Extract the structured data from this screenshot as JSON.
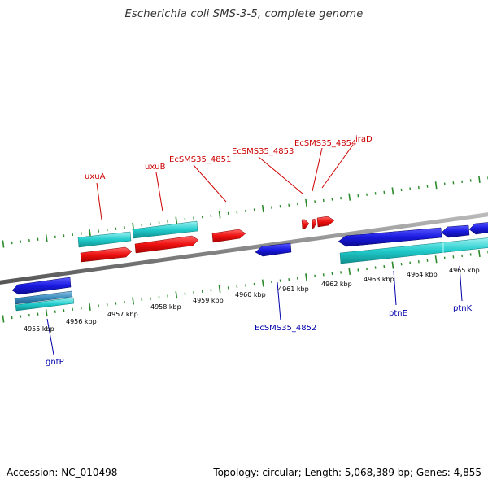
{
  "title": "Escherichia coli SMS-3-5, complete genome",
  "footer": {
    "accession": "Accession: NC_010498",
    "summary": "Topology: circular; Length: 5,068,389 bp; Genes: 4,855"
  },
  "colors": {
    "forward_cds": "#ee1111",
    "reverse_cds": "#1a1ae0",
    "forward_gene": "#22cccc",
    "reverse_gene": "#3b8fc0",
    "tick": "#2a8a2a",
    "label_top": "#cc0000",
    "label_bottom": "#0000aa",
    "backbone": "#888888"
  },
  "kbp_labels": [
    "4955 kbp",
    "4956 kbp",
    "4957 kbp",
    "4958 kbp",
    "4959 kbp",
    "4960 kbp",
    "4961 kbp",
    "4962 kbp",
    "4963 kbp",
    "4964 kbp",
    "4965 kbp"
  ],
  "top_gene_labels": [
    "uxuA",
    "uxuB",
    "EcSMS35_4851",
    "EcSMS35_4853",
    "EcSMS35_4854",
    "iraD"
  ],
  "bottom_gene_labels": [
    "gntP",
    "EcSMS35_4852",
    "ptnE",
    "ptnK"
  ]
}
